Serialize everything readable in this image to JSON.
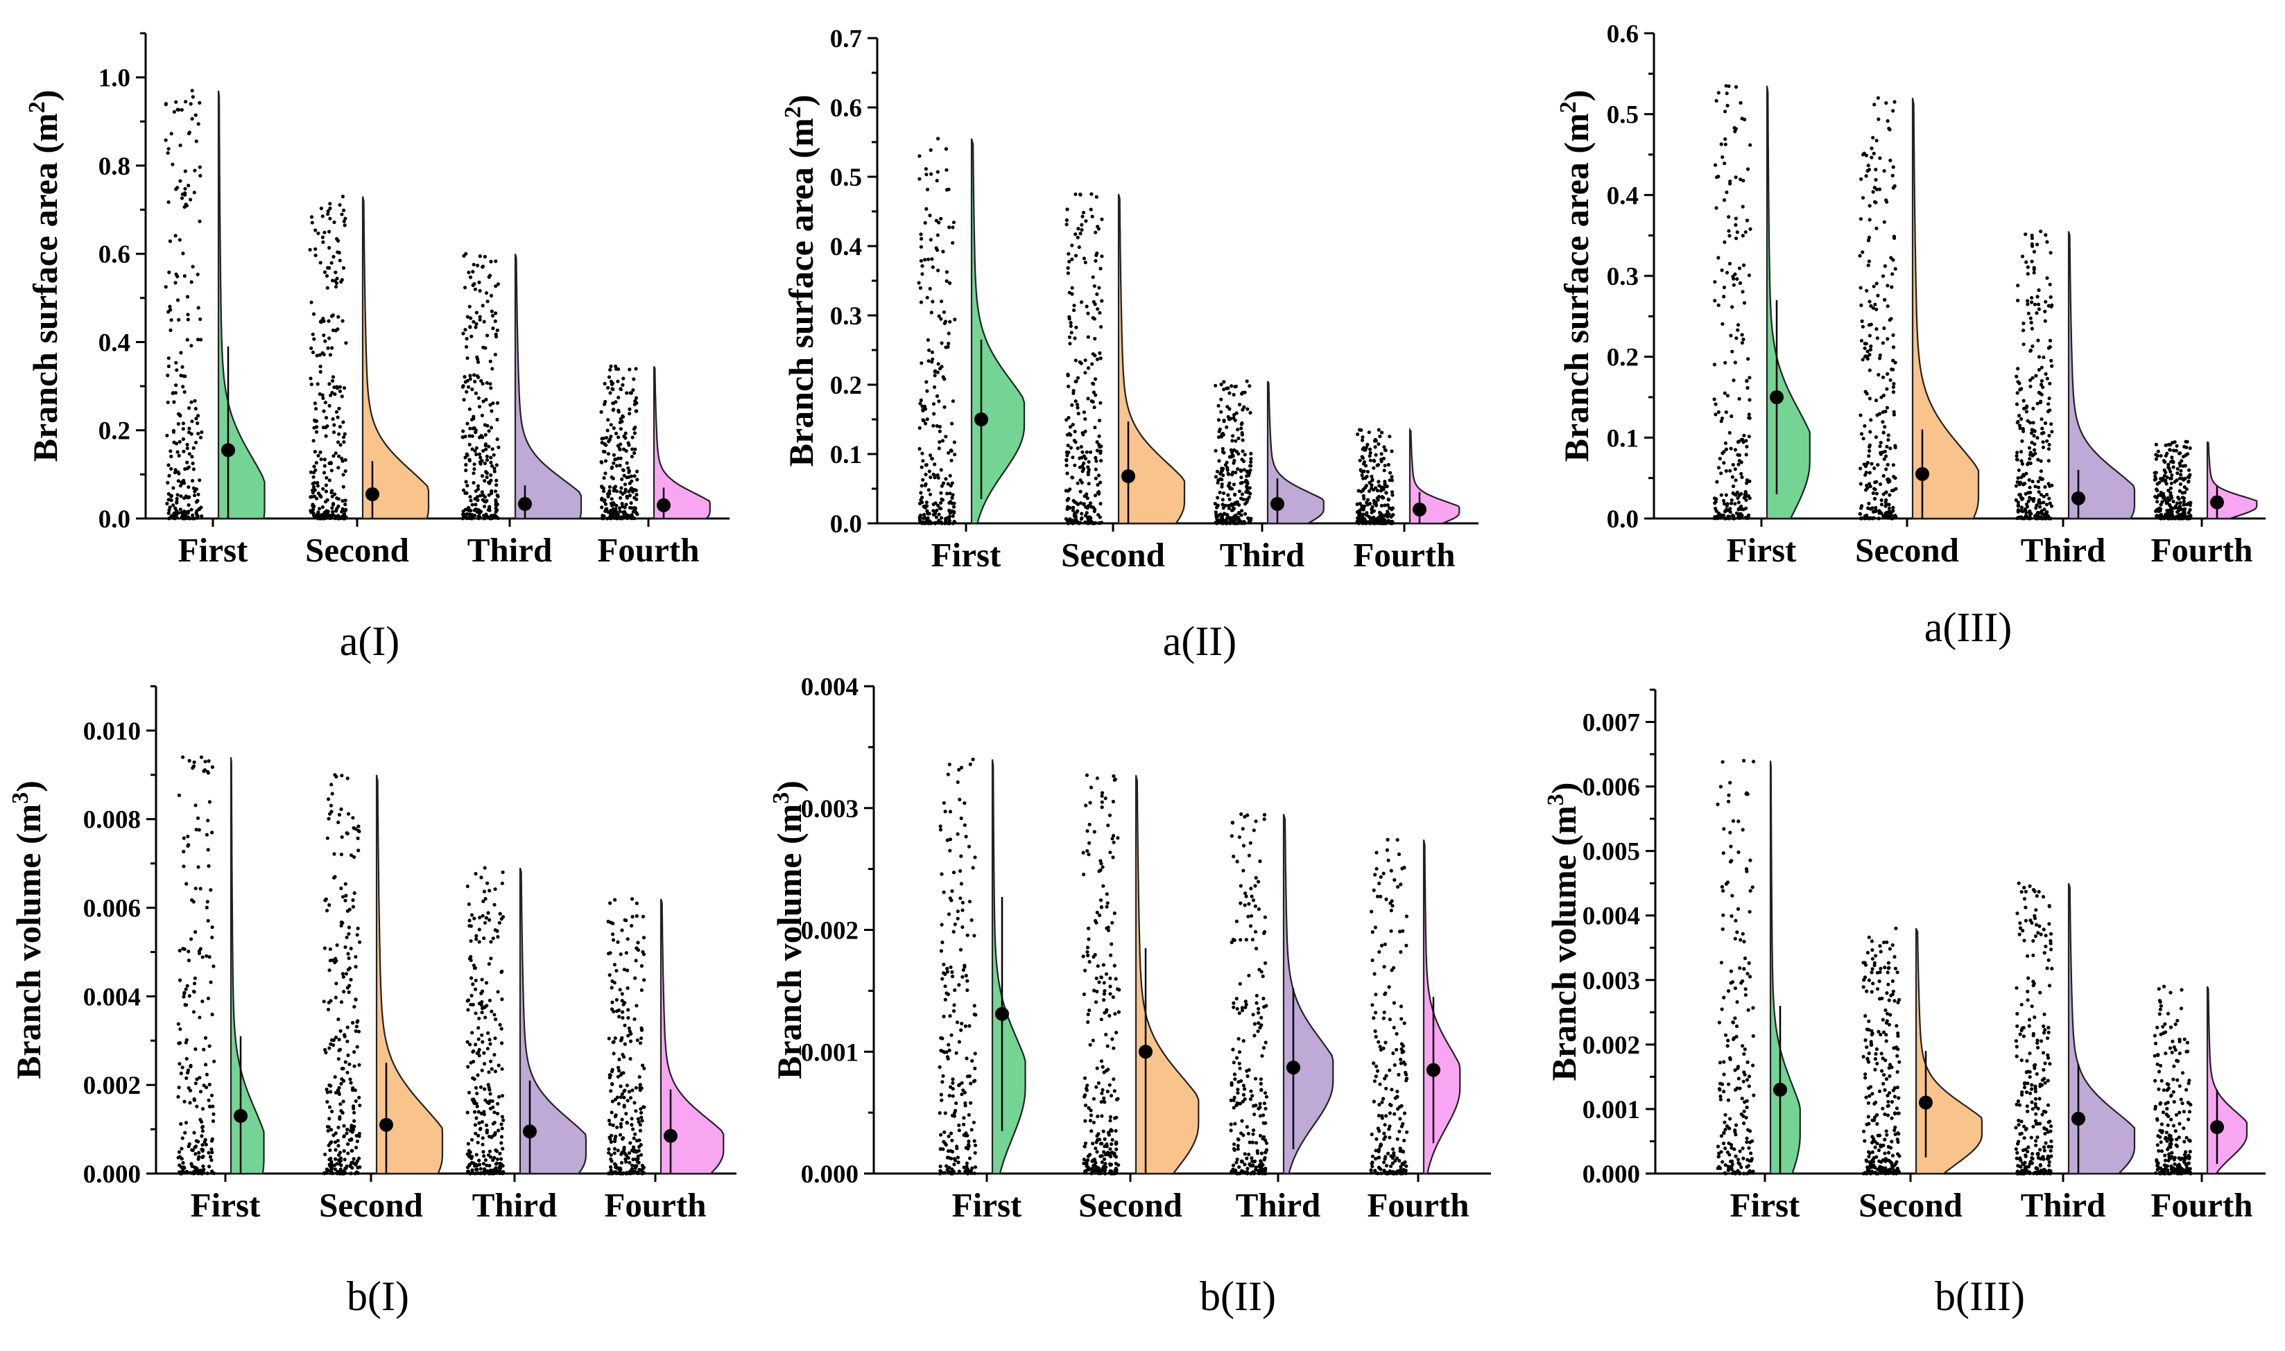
{
  "figure": {
    "colors": {
      "First": "#74d494",
      "Second": "#f9c38c",
      "Third": "#bfa9d6",
      "Fourth": "#f8a6f2"
    }
  },
  "chart_data": [
    {
      "id": "a1",
      "type": "raincloud",
      "caption": "a(I)",
      "ylabel": "Branch surface area",
      "ylabel_unit": "(m",
      "ylabel_sup": "2",
      "ylabel_close": ")",
      "ylim": [
        0,
        1.1
      ],
      "yticks": [
        0.0,
        0.2,
        0.4,
        0.6,
        0.8,
        1.0
      ],
      "ytick_labels": [
        "0.0",
        "0.2",
        "0.4",
        "0.6",
        "0.8",
        "1.0"
      ],
      "categories": [
        "First",
        "Second",
        "Third",
        "Fourth"
      ],
      "series": [
        {
          "name": "First",
          "mean": 0.155,
          "err": [
            0.0,
            0.39
          ],
          "max": 0.97,
          "mode": 0.02,
          "width": 0.7
        },
        {
          "name": "Second",
          "mean": 0.055,
          "err": [
            0.0,
            0.13
          ],
          "max": 0.73,
          "mode": 0.02,
          "width": 1.0
        },
        {
          "name": "Third",
          "mean": 0.033,
          "err": [
            0.0,
            0.075
          ],
          "max": 0.6,
          "mode": 0.015,
          "width": 1.0
        },
        {
          "name": "Fourth",
          "mean": 0.03,
          "err": [
            0.0,
            0.07
          ],
          "max": 0.345,
          "mode": 0.015,
          "width": 0.85
        }
      ]
    },
    {
      "id": "a2",
      "type": "raincloud",
      "caption": "a(II)",
      "ylabel": "Branch surface area",
      "ylabel_unit": "(m",
      "ylabel_sup": "2",
      "ylabel_close": ")",
      "ylim": [
        0,
        0.7
      ],
      "yticks": [
        0.0,
        0.1,
        0.2,
        0.3,
        0.4,
        0.5,
        0.6,
        0.7
      ],
      "ytick_labels": [
        "0.0",
        "0.1",
        "0.2",
        "0.3",
        "0.4",
        "0.5",
        "0.6",
        "0.7"
      ],
      "categories": [
        "First",
        "Second",
        "Third",
        "Fourth"
      ],
      "series": [
        {
          "name": "First",
          "mean": 0.15,
          "err": [
            0.035,
            0.265
          ],
          "max": 0.555,
          "mode": 0.14,
          "width": 0.8
        },
        {
          "name": "Second",
          "mean": 0.068,
          "err": [
            0.0,
            0.147
          ],
          "max": 0.475,
          "mode": 0.03,
          "width": 1.0
        },
        {
          "name": "Third",
          "mean": 0.028,
          "err": [
            0.0,
            0.065
          ],
          "max": 0.205,
          "mode": 0.02,
          "width": 0.85
        },
        {
          "name": "Fourth",
          "mean": 0.02,
          "err": [
            0.0,
            0.045
          ],
          "max": 0.135,
          "mode": 0.015,
          "width": 0.75
        }
      ]
    },
    {
      "id": "a3",
      "type": "raincloud",
      "caption": "a(III)",
      "ylabel": "Branch surface area",
      "ylabel_unit": "(m",
      "ylabel_sup": "2",
      "ylabel_close": ")",
      "ylim": [
        0,
        0.6
      ],
      "yticks": [
        0.0,
        0.1,
        0.2,
        0.3,
        0.4,
        0.5,
        0.6
      ],
      "ytick_labels": [
        "0.0",
        "0.1",
        "0.2",
        "0.3",
        "0.4",
        "0.5",
        "0.6"
      ],
      "categories": [
        "First",
        "Second",
        "Third",
        "Fourth"
      ],
      "series": [
        {
          "name": "First",
          "mean": 0.15,
          "err": [
            0.03,
            0.27
          ],
          "max": 0.535,
          "mode": 0.07,
          "width": 0.65
        },
        {
          "name": "Second",
          "mean": 0.055,
          "err": [
            0.0,
            0.11
          ],
          "max": 0.52,
          "mode": 0.025,
          "width": 1.0
        },
        {
          "name": "Third",
          "mean": 0.025,
          "err": [
            0.0,
            0.06
          ],
          "max": 0.355,
          "mode": 0.015,
          "width": 1.0
        },
        {
          "name": "Fourth",
          "mean": 0.02,
          "err": [
            0.0,
            0.04
          ],
          "max": 0.095,
          "mode": 0.015,
          "width": 0.75
        }
      ]
    },
    {
      "id": "b1",
      "type": "raincloud",
      "caption": "b(I)",
      "ylabel": "Branch volume",
      "ylabel_unit": "(m",
      "ylabel_sup": "3",
      "ylabel_close": ")",
      "ylim": [
        0,
        0.011
      ],
      "yticks": [
        0.0,
        0.002,
        0.004,
        0.006,
        0.008,
        0.01
      ],
      "ytick_labels": [
        "0.000",
        "0.002",
        "0.004",
        "0.006",
        "0.008",
        "0.010"
      ],
      "categories": [
        "First",
        "Second",
        "Third",
        "Fourth"
      ],
      "series": [
        {
          "name": "First",
          "mean": 0.0013,
          "err": [
            0.0,
            0.0031
          ],
          "max": 0.0094,
          "mode": 0.0003,
          "width": 0.5
        },
        {
          "name": "Second",
          "mean": 0.0011,
          "err": [
            0.0,
            0.0025
          ],
          "max": 0.009,
          "mode": 0.0004,
          "width": 1.0
        },
        {
          "name": "Third",
          "mean": 0.00095,
          "err": [
            0.0,
            0.0021
          ],
          "max": 0.0069,
          "mode": 0.0004,
          "width": 1.0
        },
        {
          "name": "Fourth",
          "mean": 0.00085,
          "err": [
            0.0,
            0.0019
          ],
          "max": 0.0062,
          "mode": 0.0005,
          "width": 0.95
        }
      ]
    },
    {
      "id": "b2",
      "type": "raincloud",
      "caption": "b(II)",
      "ylabel": "Branch volume",
      "ylabel_unit": "(m",
      "ylabel_sup": "3",
      "ylabel_close": ")",
      "ylim": [
        0,
        0.004
      ],
      "yticks": [
        0.0,
        0.001,
        0.002,
        0.003,
        0.004
      ],
      "ytick_labels": [
        "0.000",
        "0.001",
        "0.002",
        "0.003",
        "0.004"
      ],
      "categories": [
        "First",
        "Second",
        "Third",
        "Fourth"
      ],
      "series": [
        {
          "name": "First",
          "mean": 0.00131,
          "err": [
            0.00035,
            0.00227
          ],
          "max": 0.0034,
          "mode": 0.0007,
          "width": 0.5
        },
        {
          "name": "Second",
          "mean": 0.001,
          "err": [
            0.0,
            0.00185
          ],
          "max": 0.00327,
          "mode": 0.0004,
          "width": 0.95
        },
        {
          "name": "Third",
          "mean": 0.00087,
          "err": [
            0.0002,
            0.00152
          ],
          "max": 0.00295,
          "mode": 0.00075,
          "width": 0.75
        },
        {
          "name": "Fourth",
          "mean": 0.00085,
          "err": [
            0.00025,
            0.00145
          ],
          "max": 0.00274,
          "mode": 0.0007,
          "width": 0.55
        }
      ]
    },
    {
      "id": "b3",
      "type": "raincloud",
      "caption": "b(III)",
      "ylabel": "Branch volume",
      "ylabel_unit": "(m",
      "ylabel_sup": "3",
      "ylabel_close": ")",
      "ylim": [
        0,
        0.0075
      ],
      "yticks": [
        0.0,
        0.001,
        0.002,
        0.003,
        0.004,
        0.005,
        0.006,
        0.007
      ],
      "ytick_labels": [
        "0.000",
        "0.001",
        "0.002",
        "0.003",
        "0.004",
        "0.005",
        "0.006",
        "0.007"
      ],
      "categories": [
        "First",
        "Second",
        "Third",
        "Fourth"
      ],
      "series": [
        {
          "name": "First",
          "mean": 0.0013,
          "err": [
            0.0,
            0.0026
          ],
          "max": 0.0064,
          "mode": 0.0006,
          "width": 0.45
        },
        {
          "name": "Second",
          "mean": 0.0011,
          "err": [
            0.00025,
            0.0019
          ],
          "max": 0.0038,
          "mode": 0.0006,
          "width": 1.0
        },
        {
          "name": "Third",
          "mean": 0.00085,
          "err": [
            0.0,
            0.0017
          ],
          "max": 0.0045,
          "mode": 0.0004,
          "width": 1.0
        },
        {
          "name": "Fourth",
          "mean": 0.00072,
          "err": [
            0.00015,
            0.0013
          ],
          "max": 0.0029,
          "mode": 0.0006,
          "width": 0.6
        }
      ]
    }
  ]
}
